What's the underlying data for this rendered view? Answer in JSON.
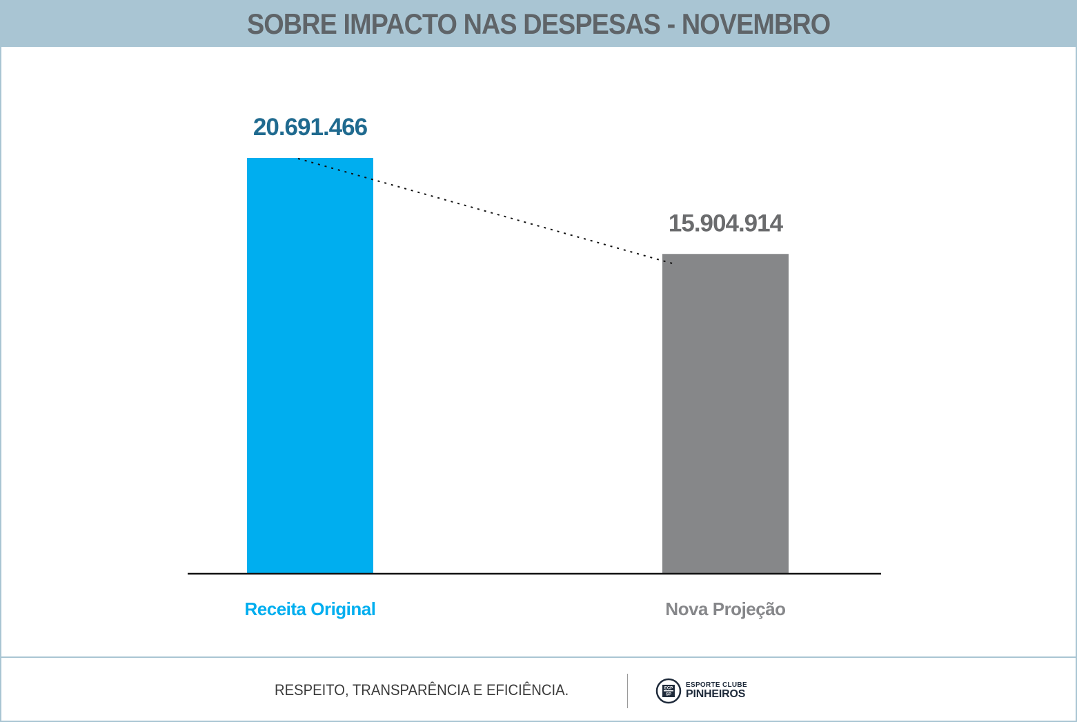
{
  "title": "SOBRE IMPACTO NAS DESPESAS - NOVEMBRO",
  "chart_data": {
    "type": "bar",
    "categories": [
      "Receita Original",
      "Nova Projeção"
    ],
    "values": [
      20691466,
      15904914
    ],
    "value_labels": [
      "20.691.466",
      "15.904.914"
    ],
    "colors": [
      "#00aeef",
      "#868789"
    ],
    "label_colors": [
      "#1f6a8f",
      "#6a6b6d"
    ],
    "category_colors": [
      "#00aeef",
      "#86878a"
    ],
    "ylim": [
      0,
      20691466
    ],
    "grid": false,
    "trend_line": "dotted"
  },
  "footer": {
    "motto": "RESPEITO, TRANSPARÊNCIA E EFICIÊNCIA.",
    "logo_top": "ESPORTE CLUBE",
    "logo_bottom": "PINHEIROS",
    "logo_mark_text": "ECP SP"
  }
}
